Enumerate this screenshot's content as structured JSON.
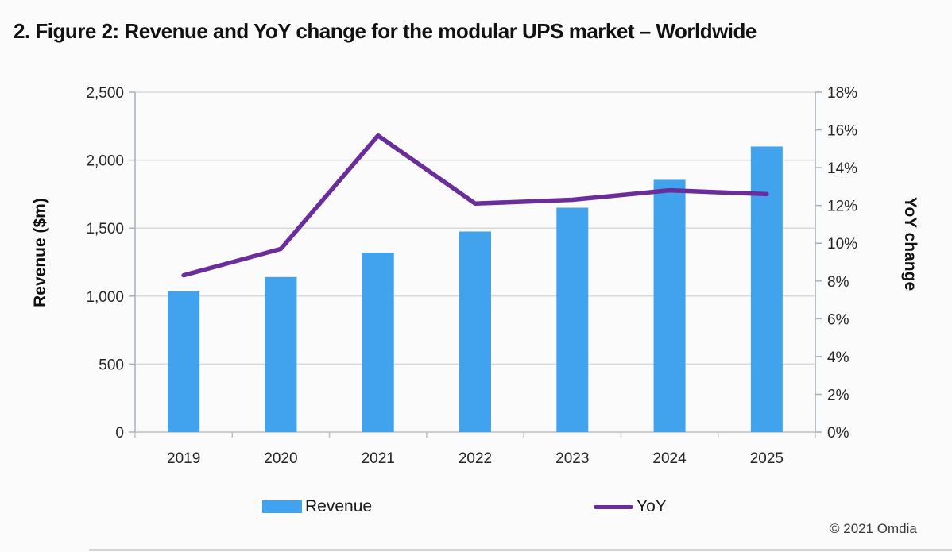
{
  "title": "2. Figure 2: Revenue and YoY change for the modular UPS market – Worldwide",
  "copyright": "© 2021 Omdia",
  "colors": {
    "bar": "#41A2EE",
    "line": "#6A2D9B",
    "gridline": "#D9D9D9",
    "side_axis": "#A8AEC0",
    "bottom_axis": "#BFBFBF",
    "tick_text": "#262626"
  },
  "legend": {
    "items": [
      {
        "label": "Revenue",
        "type": "bar"
      },
      {
        "label": "YoY",
        "type": "line"
      }
    ]
  },
  "chart_data": {
    "type": "bar+line combo",
    "title": "2. Figure 2: Revenue and YoY change for the modular UPS market – Worldwide",
    "categories": [
      "2019",
      "2020",
      "2021",
      "2022",
      "2023",
      "2024",
      "2025"
    ],
    "series": [
      {
        "name": "Revenue",
        "type": "bar",
        "axis": "left",
        "color": "#41A2EE",
        "values": [
          1035,
          1140,
          1320,
          1475,
          1650,
          1855,
          2100
        ]
      },
      {
        "name": "YoY",
        "type": "line",
        "axis": "right",
        "color": "#6A2D9B",
        "values": [
          8.3,
          9.7,
          15.7,
          12.1,
          12.3,
          12.8,
          12.6
        ]
      }
    ],
    "left_axis": {
      "label": "Revenue ($m)",
      "min": 0,
      "max": 2500,
      "step": 500,
      "ticks": [
        "0",
        "500",
        "1,000",
        "1,500",
        "2,000",
        "2,500"
      ]
    },
    "right_axis": {
      "label": "YoY change",
      "min": 0,
      "max": 18,
      "step": 2,
      "ticks": [
        "0%",
        "2%",
        "4%",
        "6%",
        "8%",
        "10%",
        "12%",
        "14%",
        "16%",
        "18%"
      ]
    },
    "grid": true,
    "legend_position": "bottom"
  }
}
